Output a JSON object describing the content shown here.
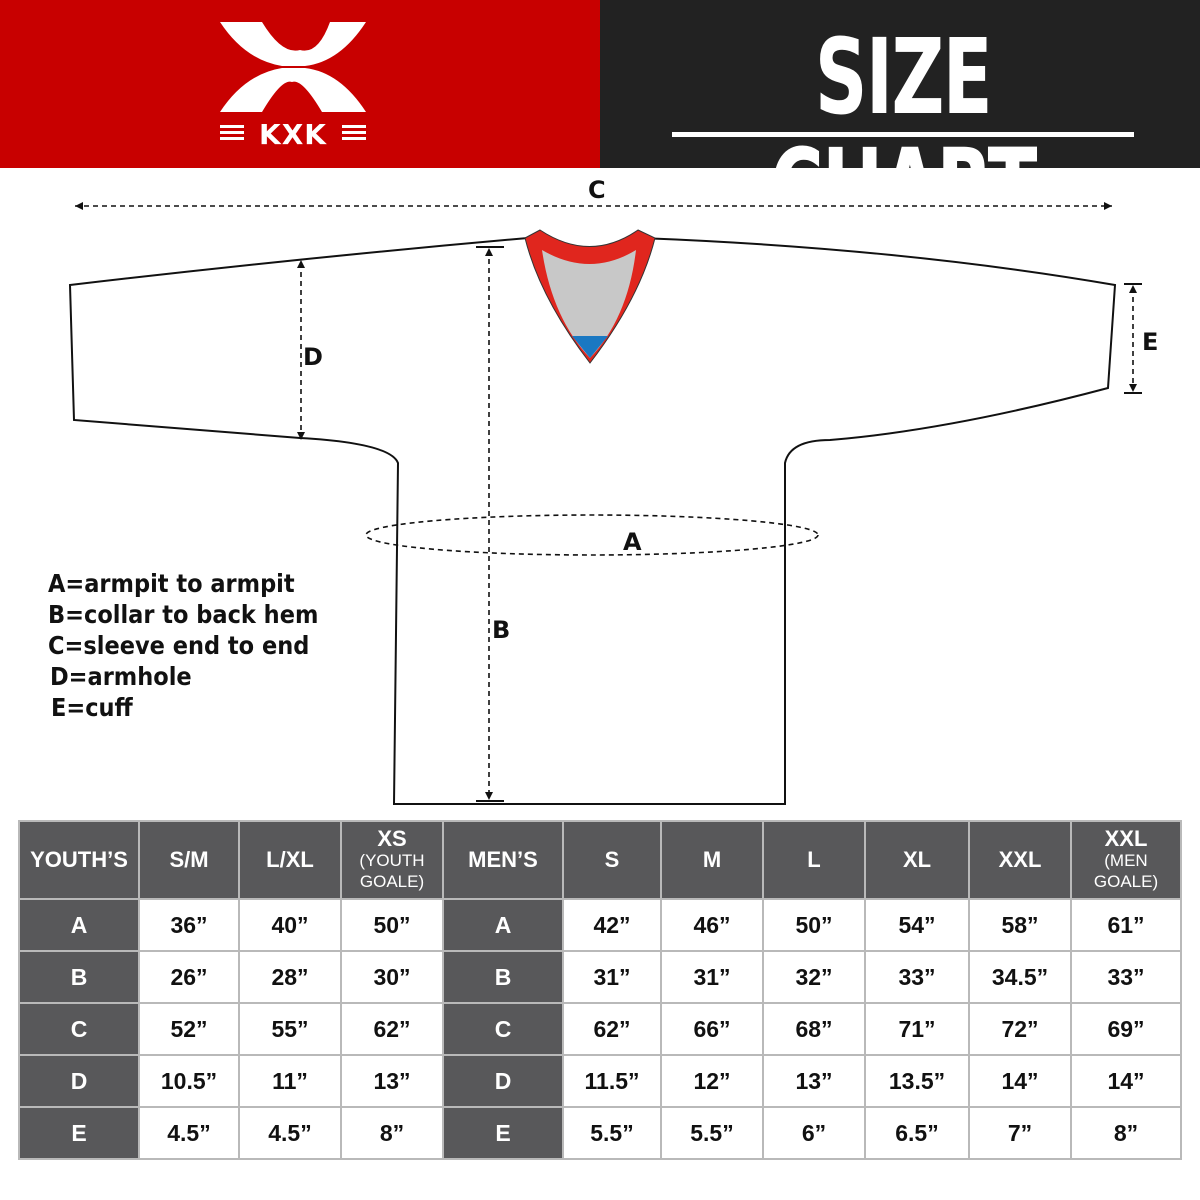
{
  "brand": {
    "logo_text": "KXK",
    "color": "#c80000"
  },
  "title": "SIZE CHART",
  "diagram": {
    "labels": {
      "a": "A",
      "b": "B",
      "c": "C",
      "d": "D",
      "e": "E"
    }
  },
  "legend": [
    "A=armpit to armpit",
    "B=collar to back hem",
    "C=sleeve end to end",
    "D=armhole",
    "E=cuff"
  ],
  "table": {
    "youth": {
      "header": "YOUTH’S",
      "columns": [
        {
          "label": "S/M",
          "sub": ""
        },
        {
          "label": "L/XL",
          "sub": ""
        },
        {
          "label": "XS",
          "sub": "(YOUTH GOALE)"
        }
      ],
      "rows": [
        {
          "key": "A",
          "values": [
            "36”",
            "40”",
            "50”"
          ]
        },
        {
          "key": "B",
          "values": [
            "26”",
            "28”",
            "30”"
          ]
        },
        {
          "key": "C",
          "values": [
            "52”",
            "55”",
            "62”"
          ]
        },
        {
          "key": "D",
          "values": [
            "10.5”",
            "11”",
            "13”"
          ]
        },
        {
          "key": "E",
          "values": [
            "4.5”",
            "4.5”",
            "8”"
          ]
        }
      ]
    },
    "men": {
      "header": "MEN’S",
      "columns": [
        {
          "label": "S",
          "sub": ""
        },
        {
          "label": "M",
          "sub": ""
        },
        {
          "label": "L",
          "sub": ""
        },
        {
          "label": "XL",
          "sub": ""
        },
        {
          "label": "XXL",
          "sub": ""
        },
        {
          "label": "XXL",
          "sub": "(MEN GOALE)"
        }
      ],
      "rows": [
        {
          "key": "A",
          "values": [
            "42”",
            "46”",
            "50”",
            "54”",
            "58”",
            "61”"
          ]
        },
        {
          "key": "B",
          "values": [
            "31”",
            "31”",
            "32”",
            "33”",
            "34.5”",
            "33”"
          ]
        },
        {
          "key": "C",
          "values": [
            "62”",
            "66”",
            "68”",
            "71”",
            "72”",
            "69”"
          ]
        },
        {
          "key": "D",
          "values": [
            "11.5”",
            "12”",
            "13”",
            "13.5”",
            "14”",
            "14”"
          ]
        },
        {
          "key": "E",
          "values": [
            "5.5”",
            "5.5”",
            "6”",
            "6.5”",
            "7”",
            "8”"
          ]
        }
      ]
    }
  }
}
